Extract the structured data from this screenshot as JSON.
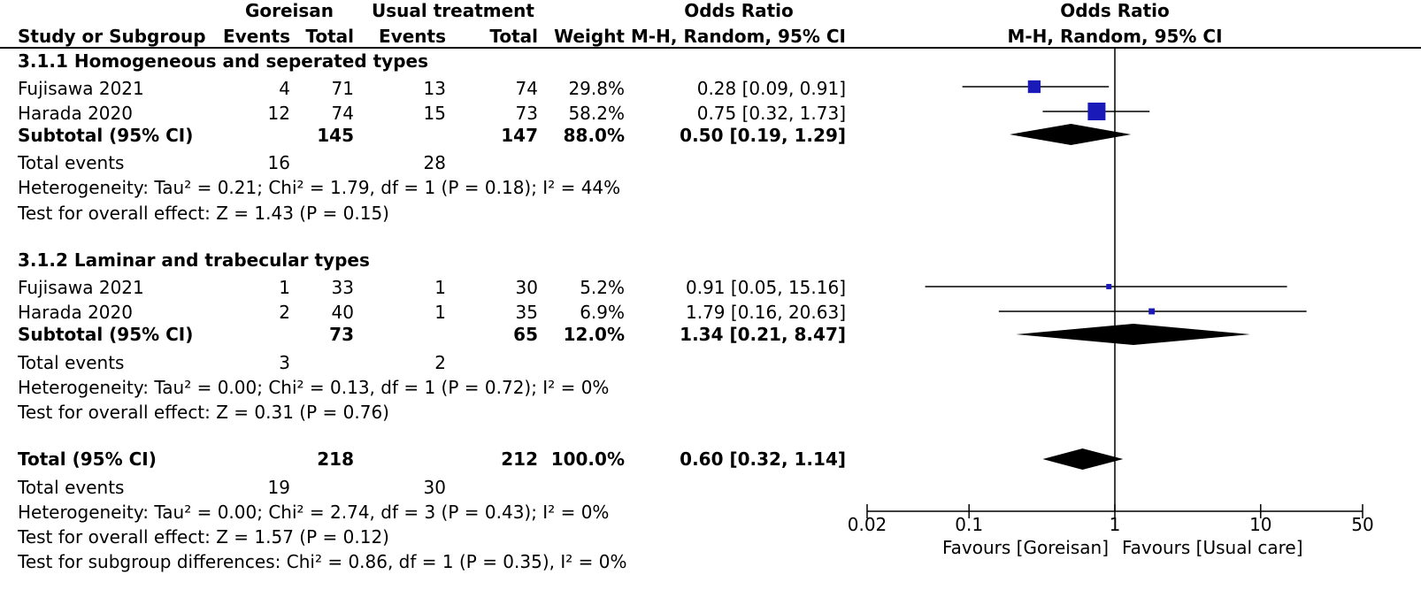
{
  "header": {
    "group1": "Goreisan",
    "group2": "Usual treatment",
    "or_title": "Odds Ratio",
    "col_study": "Study or Subgroup",
    "col_events1": "Events",
    "col_total1": "Total",
    "col_events2": "Events",
    "col_total2": "Total",
    "col_weight": "Weight",
    "col_method": "M-H, Random, 95% CI",
    "plot_title": "Odds Ratio",
    "plot_method": "M-H, Random, 95% CI"
  },
  "subgroups": [
    {
      "title": "3.1.1 Homogeneous and seperated types",
      "studies": [
        {
          "name": "Fujisawa 2021",
          "events1": "4",
          "total1": "71",
          "events2": "13",
          "total2": "74",
          "weight": "29.8%",
          "ci": "0.28 [0.09, 0.91]"
        },
        {
          "name": "Harada 2020",
          "events1": "12",
          "total1": "74",
          "events2": "15",
          "total2": "73",
          "weight": "58.2%",
          "ci": "0.75 [0.32, 1.73]"
        }
      ],
      "subtotal": {
        "label": "Subtotal (95% CI)",
        "total1": "145",
        "total2": "147",
        "weight": "88.0%",
        "ci": "0.50 [0.19, 1.29]"
      },
      "total_events": {
        "label": "Total events",
        "e1": "16",
        "e2": "28"
      },
      "heterogeneity": "Heterogeneity: Tau² = 0.21; Chi² = 1.79, df = 1 (P = 0.18); I² = 44%",
      "overall": "Test for overall effect: Z = 1.43 (P = 0.15)"
    },
    {
      "title": "3.1.2 Laminar and trabecular types",
      "studies": [
        {
          "name": "Fujisawa 2021",
          "events1": "1",
          "total1": "33",
          "events2": "1",
          "total2": "30",
          "weight": "5.2%",
          "ci": "0.91 [0.05, 15.16]"
        },
        {
          "name": "Harada 2020",
          "events1": "2",
          "total1": "40",
          "events2": "1",
          "total2": "35",
          "weight": "6.9%",
          "ci": "1.79 [0.16, 20.63]"
        }
      ],
      "subtotal": {
        "label": "Subtotal (95% CI)",
        "total1": "73",
        "total2": "65",
        "weight": "12.0%",
        "ci": "1.34 [0.21, 8.47]"
      },
      "total_events": {
        "label": "Total events",
        "e1": "3",
        "e2": "2"
      },
      "heterogeneity": "Heterogeneity: Tau² = 0.00; Chi² = 0.13, df = 1 (P = 0.72); I² = 0%",
      "overall": "Test for overall effect: Z = 0.31 (P = 0.76)"
    }
  ],
  "total": {
    "label": "Total (95% CI)",
    "total1": "218",
    "total2": "212",
    "weight": "100.0%",
    "ci": "0.60 [0.32, 1.14]",
    "events_label": "Total events",
    "e1": "19",
    "e2": "30",
    "heterogeneity": "Heterogeneity: Tau² = 0.00; Chi² = 2.74, df = 3 (P = 0.43); I² = 0%",
    "overall": "Test for overall effect: Z = 1.57 (P = 0.12)",
    "subgroup_diff": "Test for subgroup differences: Chi² = 0.86, df = 1 (P = 0.35), I² = 0%"
  },
  "axis": {
    "ticks": [
      {
        "value": 0.02,
        "label": "0.02"
      },
      {
        "value": 0.1,
        "label": "0.1"
      },
      {
        "value": 1,
        "label": "1"
      },
      {
        "value": 10,
        "label": "10"
      },
      {
        "value": 50,
        "label": "50"
      }
    ],
    "favours_left": "Favours [Goreisan]",
    "favours_right": "Favours [Usual care]"
  },
  "colors": {
    "study_marker": "#1a1ab8",
    "diamond": "#000000"
  },
  "chart_data": {
    "type": "forest",
    "scale": "log",
    "xlim": [
      0.02,
      50
    ],
    "null_line": 1,
    "studies": [
      {
        "row": "Fujisawa 2021 (3.1.1)",
        "or": 0.28,
        "lo": 0.09,
        "hi": 0.91,
        "weight": 29.8
      },
      {
        "row": "Harada 2020 (3.1.1)",
        "or": 0.75,
        "lo": 0.32,
        "hi": 1.73,
        "weight": 58.2
      },
      {
        "row": "Fujisawa 2021 (3.1.2)",
        "or": 0.91,
        "lo": 0.05,
        "hi": 15.16,
        "weight": 5.2
      },
      {
        "row": "Harada 2020 (3.1.2)",
        "or": 1.79,
        "lo": 0.16,
        "hi": 20.63,
        "weight": 6.9
      }
    ],
    "summaries": [
      {
        "row": "Subtotal 3.1.1",
        "or": 0.5,
        "lo": 0.19,
        "hi": 1.29
      },
      {
        "row": "Subtotal 3.1.2",
        "or": 1.34,
        "lo": 0.21,
        "hi": 8.47
      },
      {
        "row": "Total",
        "or": 0.6,
        "lo": 0.32,
        "hi": 1.14
      }
    ]
  }
}
